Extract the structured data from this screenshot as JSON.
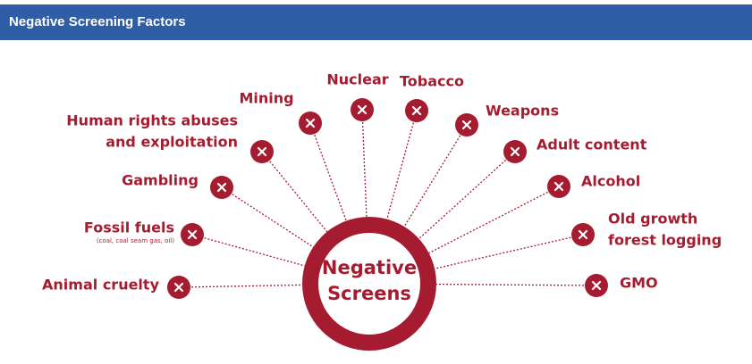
{
  "header": {
    "title": "Negative Screening Factors"
  },
  "center": {
    "lines": [
      "Negative",
      "Screens"
    ]
  },
  "factors": [
    {
      "lines": [
        "Animal cruelty"
      ]
    },
    {
      "lines": [
        "Fossil fuels"
      ],
      "note": "(coal, coal seam gas, oil)"
    },
    {
      "lines": [
        "Gambling"
      ]
    },
    {
      "lines": [
        "Human rights abuses",
        "and exploitation"
      ]
    },
    {
      "lines": [
        "Mining"
      ]
    },
    {
      "lines": [
        "Nuclear"
      ]
    },
    {
      "lines": [
        "Tobacco"
      ]
    },
    {
      "lines": [
        "Weapons"
      ]
    },
    {
      "lines": [
        "Adult content"
      ]
    },
    {
      "lines": [
        "Alcohol"
      ]
    },
    {
      "lines": [
        "Old growth",
        "forest logging"
      ]
    },
    {
      "lines": [
        "GMO"
      ]
    }
  ]
}
